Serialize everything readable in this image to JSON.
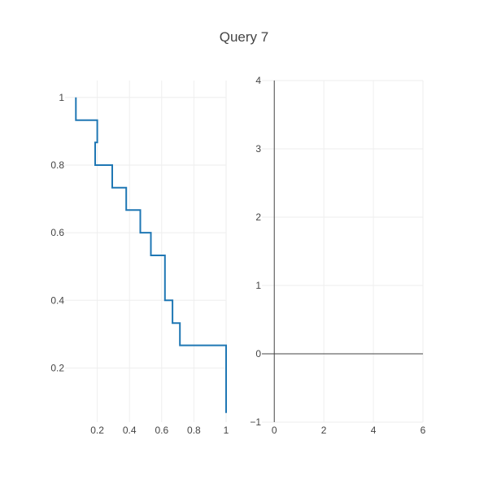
{
  "chart_data": [
    {
      "type": "line",
      "title": "Query 7",
      "xlabel": "",
      "ylabel": "",
      "xlim": [
        0.0,
        1.0
      ],
      "ylim": [
        0.04,
        1.05
      ],
      "x_ticks": [
        0.2,
        0.4,
        0.6,
        0.8,
        1
      ],
      "x_tick_labels": [
        "0.2",
        "0.4",
        "0.6",
        "0.8",
        "1"
      ],
      "y_ticks": [
        0.2,
        0.4,
        0.6,
        0.8,
        1
      ],
      "y_tick_labels": [
        "0.2",
        "0.4",
        "0.6",
        "0.8",
        "1"
      ],
      "grid": true,
      "line_color": "#1f77b4",
      "series": [
        {
          "x": [
            0.067,
            0.067,
            0.067,
            0.2,
            0.2,
            0.187,
            0.187,
            0.187,
            0.187,
            0.293,
            0.293,
            0.38,
            0.38,
            0.467,
            0.467,
            0.533,
            0.533,
            0.62,
            0.62,
            0.667,
            0.667,
            0.713,
            0.713,
            1.0,
            1.0
          ],
          "y": [
            1.0,
            1.0,
            0.933,
            0.933,
            0.867,
            0.867,
            0.8,
            0.8,
            0.8,
            0.8,
            0.733,
            0.733,
            0.667,
            0.667,
            0.6,
            0.6,
            0.533,
            0.533,
            0.4,
            0.4,
            0.333,
            0.333,
            0.267,
            0.267,
            0.067
          ]
        }
      ]
    },
    {
      "type": "line",
      "title": "",
      "xlabel": "",
      "ylabel": "",
      "xlim": [
        -0.5,
        6.0
      ],
      "ylim": [
        -1.0,
        4.0
      ],
      "x_ticks": [
        0,
        2,
        4,
        6
      ],
      "x_tick_labels": [
        "0",
        "2",
        "4",
        "6"
      ],
      "y_ticks": [
        -1,
        0,
        1,
        2,
        3,
        4
      ],
      "y_tick_labels": [
        "−1",
        "0",
        "1",
        "2",
        "3",
        "4"
      ],
      "grid": true,
      "zero_lines": true,
      "series": []
    }
  ]
}
